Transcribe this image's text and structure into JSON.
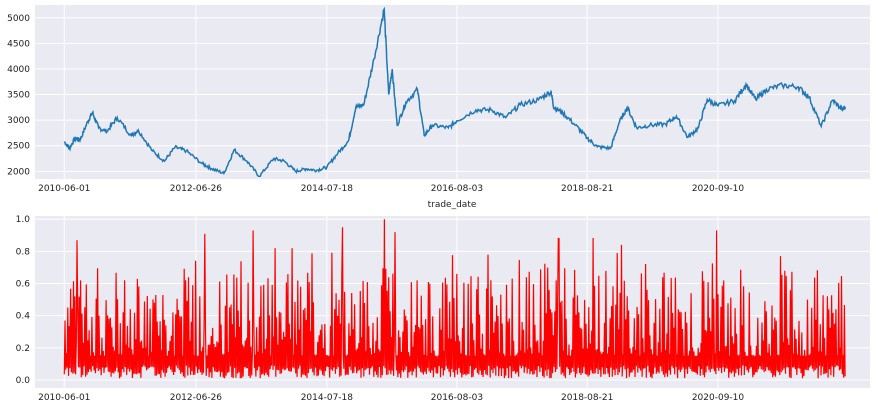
{
  "chart_data": [
    {
      "type": "line",
      "title": "",
      "xlabel": "trade_date",
      "ylabel": "",
      "x_ticks": [
        "2010-06-01",
        "2012-06-26",
        "2014-07-18",
        "2016-08-03",
        "2018-08-21",
        "2020-09-10"
      ],
      "y_ticks": [
        2000,
        2500,
        3000,
        3500,
        4000,
        4500,
        5000
      ],
      "xlim": [
        "2009-12-15",
        "2023-01-31"
      ],
      "ylim": [
        1850,
        5250
      ],
      "grid": true,
      "series": [
        {
          "color": "#1f77b4",
          "points": [
            [
              "2010-06-01",
              2580
            ],
            [
              "2010-07-01",
              2450
            ],
            [
              "2010-08-01",
              2640
            ],
            [
              "2010-09-01",
              2620
            ],
            [
              "2010-10-15",
              2980
            ],
            [
              "2010-11-10",
              3150
            ],
            [
              "2010-12-15",
              2850
            ],
            [
              "2011-02-01",
              2780
            ],
            [
              "2011-04-01",
              3050
            ],
            [
              "2011-06-20",
              2700
            ],
            [
              "2011-08-01",
              2800
            ],
            [
              "2011-10-20",
              2400
            ],
            [
              "2011-12-28",
              2200
            ],
            [
              "2012-02-27",
              2470
            ],
            [
              "2012-05-01",
              2400
            ],
            [
              "2012-08-01",
              2150
            ],
            [
              "2012-09-26",
              2050
            ],
            [
              "2012-12-04",
              1960
            ],
            [
              "2013-02-01",
              2420
            ],
            [
              "2013-04-15",
              2200
            ],
            [
              "2013-06-25",
              1900
            ],
            [
              "2013-09-15",
              2250
            ],
            [
              "2013-11-15",
              2200
            ],
            [
              "2014-01-20",
              2000
            ],
            [
              "2014-03-20",
              2050
            ],
            [
              "2014-05-20",
              2020
            ],
            [
              "2014-07-18",
              2080
            ],
            [
              "2014-09-20",
              2360
            ],
            [
              "2014-11-20",
              2600
            ],
            [
              "2014-12-31",
              3250
            ],
            [
              "2015-02-15",
              3300
            ],
            [
              "2015-04-15",
              4200
            ],
            [
              "2015-06-12",
              5170
            ],
            [
              "2015-07-08",
              3500
            ],
            [
              "2015-07-28",
              4000
            ],
            [
              "2015-08-26",
              2900
            ],
            [
              "2015-10-15",
              3350
            ],
            [
              "2015-12-20",
              3600
            ],
            [
              "2016-01-28",
              2700
            ],
            [
              "2016-03-15",
              2900
            ],
            [
              "2016-06-15",
              2850
            ],
            [
              "2016-08-03",
              2990
            ],
            [
              "2016-11-20",
              3200
            ],
            [
              "2017-02-15",
              3200
            ],
            [
              "2017-05-10",
              3050
            ],
            [
              "2017-08-01",
              3300
            ],
            [
              "2017-11-15",
              3400
            ],
            [
              "2018-01-25",
              3560
            ],
            [
              "2018-02-10",
              3250
            ],
            [
              "2018-04-01",
              3150
            ],
            [
              "2018-06-15",
              2900
            ],
            [
              "2018-08-21",
              2650
            ],
            [
              "2018-10-18",
              2480
            ],
            [
              "2019-01-03",
              2450
            ],
            [
              "2019-02-20",
              2950
            ],
            [
              "2019-04-08",
              3250
            ],
            [
              "2019-06-01",
              2850
            ],
            [
              "2019-08-15",
              2900
            ],
            [
              "2019-11-15",
              2920
            ],
            [
              "2020-01-15",
              3080
            ],
            [
              "2020-03-20",
              2660
            ],
            [
              "2020-05-20",
              2850
            ],
            [
              "2020-07-10",
              3400
            ],
            [
              "2020-09-10",
              3280
            ],
            [
              "2020-12-15",
              3380
            ],
            [
              "2021-02-18",
              3700
            ],
            [
              "2021-04-15",
              3400
            ],
            [
              "2021-06-15",
              3600
            ],
            [
              "2021-09-15",
              3680
            ],
            [
              "2021-12-15",
              3650
            ],
            [
              "2022-02-15",
              3450
            ],
            [
              "2022-04-26",
              2880
            ],
            [
              "2022-06-30",
              3390
            ],
            [
              "2022-08-25",
              3200
            ],
            [
              "2022-09-10",
              3260
            ]
          ]
        }
      ]
    },
    {
      "type": "line",
      "title": "",
      "xlabel": "",
      "ylabel": "",
      "x_ticks": [
        "2010-06-01",
        "2012-06-26",
        "2014-07-18",
        "2016-08-03",
        "2018-08-21",
        "2020-09-10"
      ],
      "y_ticks": [
        0.0,
        0.2,
        0.4,
        0.6,
        0.8,
        1.0
      ],
      "xlim": [
        "2009-12-15",
        "2023-01-31"
      ],
      "ylim": [
        -0.05,
        1.02
      ],
      "grid": true,
      "series": [
        {
          "color": "#ff0000",
          "style": "high-frequency oscillation between 0.0 and ~1.0",
          "notable_peaks": [
            [
              "2010-08-15",
              0.87
            ],
            [
              "2012-08-15",
              0.91
            ],
            [
              "2013-05-20",
              0.93
            ],
            [
              "2014-10-15",
              0.95
            ],
            [
              "2015-06-12",
              1.0
            ],
            [
              "2015-08-15",
              0.92
            ],
            [
              "2018-03-10",
              0.88
            ],
            [
              "2020-09-01",
              0.93
            ]
          ]
        }
      ]
    }
  ]
}
